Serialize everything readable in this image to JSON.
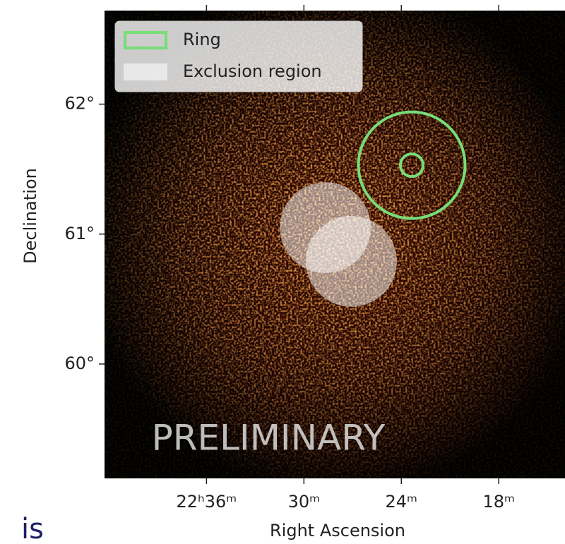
{
  "chart_data": {
    "type": "skymap",
    "xlabel": "Right Ascension",
    "ylabel": "Declination",
    "xlim": [
      340.57,
      333.48
    ],
    "ylim": [
      59.12,
      62.72
    ],
    "xticks": [
      {
        "value": 339,
        "label": "22ʰ36ᵐ"
      },
      {
        "value": 337.5,
        "label": "30ᵐ"
      },
      {
        "value": 336,
        "label": "24ᵐ"
      },
      {
        "value": 334.5,
        "label": "18ᵐ"
      }
    ],
    "yticks": [
      {
        "value": 62,
        "label": "62°"
      },
      {
        "value": 61,
        "label": "61°"
      },
      {
        "value": 60,
        "label": "60°"
      }
    ],
    "legend": "upper left",
    "regions": [
      {
        "name": "Ring",
        "kind": "ring",
        "color": "#77dd77",
        "circles": [
          {
            "ra": 335.84,
            "dec": 61.53,
            "inner_radius": 0.087,
            "outer_radius": 0.41
          }
        ]
      },
      {
        "name": "Exclusion region",
        "kind": "exclusion",
        "color": "#ffffff",
        "circles": [
          {
            "ra": 337.17,
            "dec": 61.05,
            "radius": 0.35
          },
          {
            "ra": 336.77,
            "dec": 60.79,
            "radius": 0.35
          }
        ]
      }
    ],
    "annotation": "PRELIMINARY"
  },
  "page_text": "is"
}
